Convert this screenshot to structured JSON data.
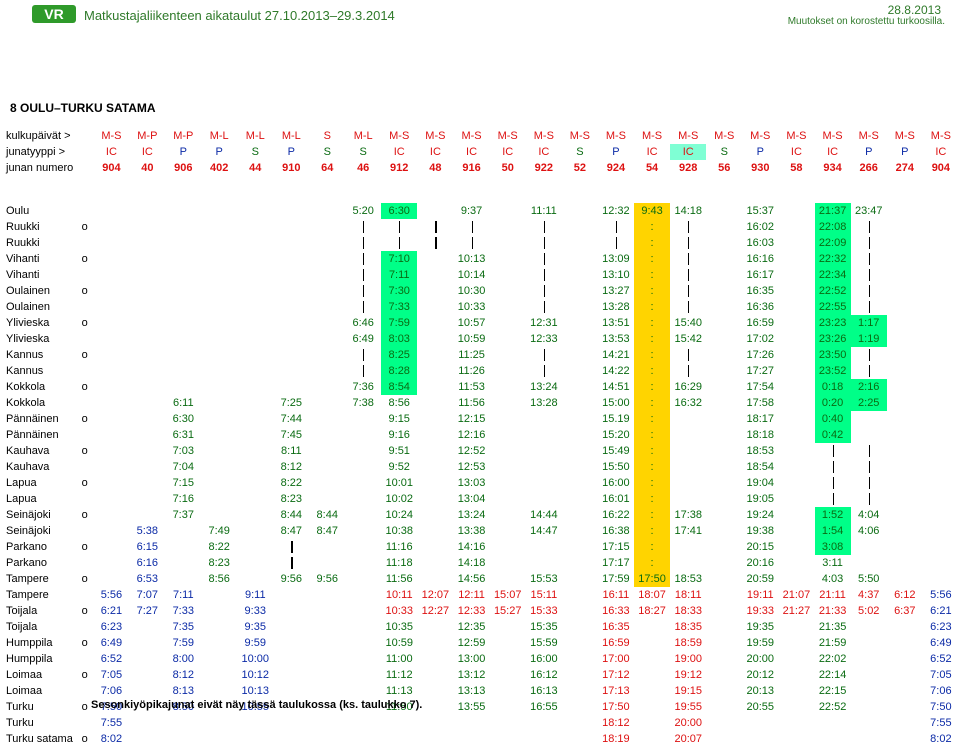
{
  "header": {
    "logo_text": "VR",
    "title": "Matkustajaliikenteen aikataulut 27.10.2013–29.3.2014",
    "date": "28.8.2013",
    "note": "Muutokset on korostettu turkoosilla."
  },
  "table_title": "8 OULU–TURKU SATAMA",
  "footer": "Sesonkiyöpikajunat eivät näy tässä taulukossa (ks. taulukko 7).",
  "row_labels": {
    "days": "kulkupäivät >",
    "type": "junatyyppi >",
    "number": "junan numero"
  },
  "days": [
    "M-S",
    "M-P",
    "M-P",
    "M-L",
    "M-L",
    "M-L",
    "S",
    "M-L",
    "M-S",
    "M-S",
    "M-S",
    "M-S",
    "M-S",
    "M-S",
    "M-S",
    "M-S",
    "M-S",
    "M-S",
    "M-S",
    "M-S",
    "M-S",
    "M-S",
    "M-S",
    "M-S"
  ],
  "types": [
    "IC",
    "IC",
    "P",
    "P",
    "S",
    "P",
    "S",
    "S",
    "IC",
    "IC",
    "IC",
    "IC",
    "IC",
    "S",
    "P",
    "IC",
    "IC",
    "S",
    "P",
    "IC",
    "IC",
    "P",
    "P",
    "IC"
  ],
  "numbers": [
    "904",
    "40",
    "906",
    "402",
    "44",
    "910",
    "64",
    "46",
    "912",
    "48",
    "916",
    "50",
    "922",
    "52",
    "924",
    "54",
    "928",
    "56",
    "930",
    "58",
    "934",
    "266",
    "274",
    "904"
  ],
  "stations": [
    {
      "name": "Oulu",
      "o": "",
      "t": [
        "",
        "",
        "",
        "",
        "",
        "",
        "",
        "5:20",
        "6:30",
        "",
        "9:37",
        "",
        "11:11",
        "",
        "12:32",
        "9:43",
        "14:18",
        "",
        "15:37",
        "",
        "21:37",
        "23:47",
        "",
        ""
      ]
    },
    {
      "name": "Ruukki",
      "o": "o",
      "t": [
        "",
        "",
        "",
        "",
        "",
        "",
        "",
        "|",
        "|",
        "|",
        "|",
        "",
        "|",
        "",
        "|",
        ":",
        "|",
        "",
        "16:02",
        "",
        "22:08",
        "|",
        "",
        ""
      ]
    },
    {
      "name": "Ruukki",
      "o": "",
      "t": [
        "",
        "",
        "",
        "",
        "",
        "",
        "",
        "|",
        "|",
        "|",
        "|",
        "",
        "|",
        "",
        "|",
        ":",
        "|",
        "",
        "16:03",
        "",
        "22:09",
        "|",
        "",
        ""
      ]
    },
    {
      "name": "Vihanti",
      "o": "o",
      "t": [
        "",
        "",
        "",
        "",
        "",
        "",
        "",
        "|",
        "7:10",
        "",
        "10:13",
        "",
        "|",
        "",
        "13:09",
        ":",
        "|",
        "",
        "16:16",
        "",
        "22:32",
        "|",
        "",
        ""
      ]
    },
    {
      "name": "Vihanti",
      "o": "",
      "t": [
        "",
        "",
        "",
        "",
        "",
        "",
        "",
        "|",
        "7:11",
        "",
        "10:14",
        "",
        "|",
        "",
        "13:10",
        ":",
        "|",
        "",
        "16:17",
        "",
        "22:34",
        "|",
        "",
        ""
      ]
    },
    {
      "name": "Oulainen",
      "o": "o",
      "t": [
        "",
        "",
        "",
        "",
        "",
        "",
        "",
        "|",
        "7:30",
        "",
        "10:30",
        "",
        "|",
        "",
        "13:27",
        ":",
        "|",
        "",
        "16:35",
        "",
        "22:52",
        "|",
        "",
        ""
      ]
    },
    {
      "name": "Oulainen",
      "o": "",
      "t": [
        "",
        "",
        "",
        "",
        "",
        "",
        "",
        "|",
        "7:33",
        "",
        "10:33",
        "",
        "|",
        "",
        "13:28",
        ":",
        "|",
        "",
        "16:36",
        "",
        "22:55",
        "|",
        "",
        ""
      ]
    },
    {
      "name": "Ylivieska",
      "o": "o",
      "t": [
        "",
        "",
        "",
        "",
        "",
        "",
        "",
        "6:46",
        "7:59",
        "",
        "10:57",
        "",
        "12:31",
        "",
        "13:51",
        ":",
        "15:40",
        "",
        "16:59",
        "",
        "23:23",
        "1:17",
        "",
        ""
      ]
    },
    {
      "name": "Ylivieska",
      "o": "",
      "t": [
        "",
        "",
        "",
        "",
        "",
        "",
        "",
        "6:49",
        "8:03",
        "",
        "10:59",
        "",
        "12:33",
        "",
        "13:53",
        ":",
        "15:42",
        "",
        "17:02",
        "",
        "23:26",
        "1:19",
        "",
        ""
      ]
    },
    {
      "name": "Kannus",
      "o": "o",
      "t": [
        "",
        "",
        "",
        "",
        "",
        "",
        "",
        "|",
        "8:25",
        "",
        "11:25",
        "",
        "|",
        "",
        "14:21",
        ":",
        "|",
        "",
        "17:26",
        "",
        "23:50",
        "|",
        "",
        ""
      ]
    },
    {
      "name": "Kannus",
      "o": "",
      "t": [
        "",
        "",
        "",
        "",
        "",
        "",
        "",
        "|",
        "8:28",
        "",
        "11:26",
        "",
        "|",
        "",
        "14:22",
        ":",
        "|",
        "",
        "17:27",
        "",
        "23:52",
        "|",
        "",
        ""
      ]
    },
    {
      "name": "Kokkola",
      "o": "o",
      "t": [
        "",
        "",
        "",
        "",
        "",
        "",
        "",
        "7:36",
        "8:54",
        "",
        "11:53",
        "",
        "13:24",
        "",
        "14:51",
        ":",
        "16:29",
        "",
        "17:54",
        "",
        "0:18",
        "2:16",
        "",
        ""
      ]
    },
    {
      "name": "Kokkola",
      "o": "",
      "t": [
        "",
        "",
        "6:11",
        "",
        "",
        "7:25",
        "",
        "7:38",
        "8:56",
        "",
        "11:56",
        "",
        "13:28",
        "",
        "15:00",
        ":",
        "16:32",
        "",
        "17:58",
        "",
        "0:20",
        "2:25",
        "",
        ""
      ]
    },
    {
      "name": "Pännäinen",
      "o": "o",
      "t": [
        "",
        "",
        "6:30",
        "",
        "",
        "7:44",
        "",
        "",
        "9:15",
        "",
        "12:15",
        "",
        "",
        "",
        "15.19",
        ":",
        "",
        "",
        "18:17",
        "",
        "0:40",
        "",
        "",
        ""
      ]
    },
    {
      "name": "Pännäinen",
      "o": "",
      "t": [
        "",
        "",
        "6:31",
        "",
        "",
        "7:45",
        "",
        "",
        "9:16",
        "",
        "12:16",
        "",
        "",
        "",
        "15:20",
        ":",
        "",
        "",
        "18:18",
        "",
        "0:42",
        "",
        "",
        ""
      ]
    },
    {
      "name": "Kauhava",
      "o": "o",
      "t": [
        "",
        "",
        "7:03",
        "",
        "",
        "8:11",
        "",
        "",
        "9:51",
        "",
        "12:52",
        "",
        "",
        "",
        "15:49",
        ":",
        "",
        "",
        "18:53",
        "",
        "|",
        "|",
        "",
        ""
      ]
    },
    {
      "name": "Kauhava",
      "o": "",
      "t": [
        "",
        "",
        "7:04",
        "",
        "",
        "8:12",
        "",
        "",
        "9:52",
        "",
        "12:53",
        "",
        "",
        "",
        "15:50",
        ":",
        "",
        "",
        "18:54",
        "",
        "|",
        "|",
        "",
        ""
      ]
    },
    {
      "name": "Lapua",
      "o": "o",
      "t": [
        "",
        "",
        "7:15",
        "",
        "",
        "8:22",
        "",
        "",
        "10:01",
        "",
        "13:03",
        "",
        "",
        "",
        "16:00",
        ":",
        "",
        "",
        "19:04",
        "",
        "|",
        "|",
        "",
        ""
      ]
    },
    {
      "name": "Lapua",
      "o": "",
      "t": [
        "",
        "",
        "7:16",
        "",
        "",
        "8:23",
        "",
        "",
        "10:02",
        "",
        "13:04",
        "",
        "",
        "",
        "16:01",
        ":",
        "",
        "",
        "19:05",
        "",
        "|",
        "|",
        "",
        ""
      ]
    },
    {
      "name": "Seinäjoki",
      "o": "o",
      "t": [
        "",
        "",
        "7:37",
        "",
        "",
        "8:44",
        "8:44",
        "",
        "10:24",
        "",
        "13:24",
        "",
        "14:44",
        "",
        "16:22",
        ":",
        "17:38",
        "",
        "19:24",
        "",
        "1:52",
        "4:04",
        "",
        ""
      ]
    },
    {
      "name": "Seinäjoki",
      "o": "",
      "t": [
        "",
        "5:38",
        "",
        "7:49",
        "",
        "8:47",
        "8:47",
        "",
        "10:38",
        "",
        "13:38",
        "",
        "14:47",
        "",
        "16:38",
        ":",
        "17:41",
        "",
        "19:38",
        "",
        "1:54",
        "4:06",
        "",
        ""
      ]
    },
    {
      "name": "Parkano",
      "o": "o",
      "t": [
        "",
        "6:15",
        "",
        "8:22",
        "",
        "|",
        "",
        "",
        "11:16",
        "",
        "14:16",
        "",
        "",
        "",
        "17:15",
        ":",
        "",
        "",
        "20:15",
        "",
        "3:08",
        "",
        "",
        ""
      ]
    },
    {
      "name": "Parkano",
      "o": "",
      "t": [
        "",
        "6:16",
        "",
        "8:23",
        "",
        "|",
        "",
        "",
        "11:18",
        "",
        "14:18",
        "",
        "",
        "",
        "17:17",
        ":",
        "",
        "",
        "20:16",
        "",
        "3:11",
        "",
        "",
        ""
      ]
    },
    {
      "name": "Tampere",
      "o": "o",
      "t": [
        "",
        "6:53",
        "",
        "8:56",
        "",
        "9:56",
        "9:56",
        "",
        "11:56",
        "",
        "14:56",
        "",
        "15:53",
        "",
        "17:59",
        "17:50",
        "18:53",
        "",
        "20:59",
        "",
        "4:03",
        "5:50",
        "",
        ""
      ]
    },
    {
      "name": "Tampere",
      "o": "",
      "t": [
        "5:56",
        "7:07",
        "7:11",
        "",
        "9:11",
        "",
        "",
        "",
        "10:11",
        "12:07",
        "12:11",
        "15:07",
        "15:11",
        "",
        "16:11",
        "18:07",
        "18:11",
        "",
        "19:11",
        "21:07",
        "21:11",
        "4:37",
        "6:12",
        "5:56"
      ]
    },
    {
      "name": "Toijala",
      "o": "o",
      "t": [
        "6:21",
        "7:27",
        "7:33",
        "",
        "9:33",
        "",
        "",
        "",
        "10:33",
        "12:27",
        "12:33",
        "15:27",
        "15:33",
        "",
        "16:33",
        "18:27",
        "18:33",
        "",
        "19:33",
        "21:27",
        "21:33",
        "5:02",
        "6:37",
        "6:21"
      ]
    },
    {
      "name": "Toijala",
      "o": "",
      "t": [
        "6:23",
        "",
        "7:35",
        "",
        "9:35",
        "",
        "",
        "",
        "10:35",
        "",
        "12:35",
        "",
        "15:35",
        "",
        "16:35",
        "",
        "18:35",
        "",
        "19:35",
        "",
        "21:35",
        "",
        "",
        "6:23"
      ]
    },
    {
      "name": "Humppila",
      "o": "o",
      "t": [
        "6:49",
        "",
        "7:59",
        "",
        "9:59",
        "",
        "",
        "",
        "10:59",
        "",
        "12:59",
        "",
        "15:59",
        "",
        "16:59",
        "",
        "18:59",
        "",
        "19:59",
        "",
        "21:59",
        "",
        "",
        "6:49"
      ]
    },
    {
      "name": "Humppila",
      "o": "",
      "t": [
        "6:52",
        "",
        "8:00",
        "",
        "10:00",
        "",
        "",
        "",
        "11:00",
        "",
        "13:00",
        "",
        "16:00",
        "",
        "17:00",
        "",
        "19:00",
        "",
        "20:00",
        "",
        "22:02",
        "",
        "",
        "6:52"
      ]
    },
    {
      "name": "Loimaa",
      "o": "o",
      "t": [
        "7:05",
        "",
        "8:12",
        "",
        "10:12",
        "",
        "",
        "",
        "11:12",
        "",
        "13:12",
        "",
        "16:12",
        "",
        "17:12",
        "",
        "19:12",
        "",
        "20:12",
        "",
        "22:14",
        "",
        "",
        "7:05"
      ]
    },
    {
      "name": "Loimaa",
      "o": "",
      "t": [
        "7:06",
        "",
        "8:13",
        "",
        "10:13",
        "",
        "",
        "",
        "11:13",
        "",
        "13:13",
        "",
        "16:13",
        "",
        "17:13",
        "",
        "19:15",
        "",
        "20:13",
        "",
        "22:15",
        "",
        "",
        "7:06"
      ]
    },
    {
      "name": "Turku",
      "o": "o",
      "t": [
        "7:50",
        "",
        "8:50",
        "",
        "10:55",
        "",
        "",
        "",
        "11:50",
        "",
        "13:55",
        "",
        "16:55",
        "",
        "17:50",
        "",
        "19:55",
        "",
        "20:55",
        "",
        "22:52",
        "",
        "",
        "7:50"
      ]
    },
    {
      "name": "Turku",
      "o": "",
      "t": [
        "7:55",
        "",
        "",
        "",
        "",
        "",
        "",
        "",
        "",
        "",
        "",
        "",
        "",
        "",
        "18:12",
        "",
        "20:00",
        "",
        "",
        "",
        "",
        "",
        "",
        "7:55"
      ]
    },
    {
      "name": "Turku satama",
      "o": "o",
      "t": [
        "8:02",
        "",
        "",
        "",
        "",
        "",
        "",
        "",
        "",
        "",
        "",
        "",
        "",
        "",
        "18:19",
        "",
        "20:07",
        "",
        "",
        "",
        "",
        "",
        "",
        "8:02"
      ]
    }
  ],
  "colors": {
    "red": "#dd1111",
    "green": "#0a6b12",
    "blue": "#0b2aa6",
    "highlight": "#00ff88",
    "turquoise": "#7fffd4",
    "orange": "#ffd400"
  }
}
